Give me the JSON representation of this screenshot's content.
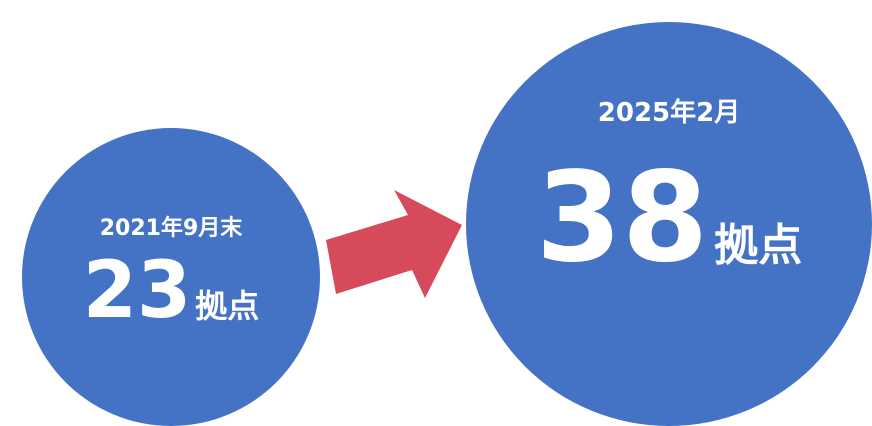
{
  "colors": {
    "circle_fill": "#4472C4",
    "arrow_fill": "#D64A5C",
    "text": "#FFFFFF"
  },
  "before": {
    "date": "2021年9月末",
    "count": "23",
    "unit": "拠点"
  },
  "after": {
    "date": "2025年2月",
    "count": "38",
    "unit": "拠点"
  },
  "arrow_icon": "right-arrow-icon"
}
